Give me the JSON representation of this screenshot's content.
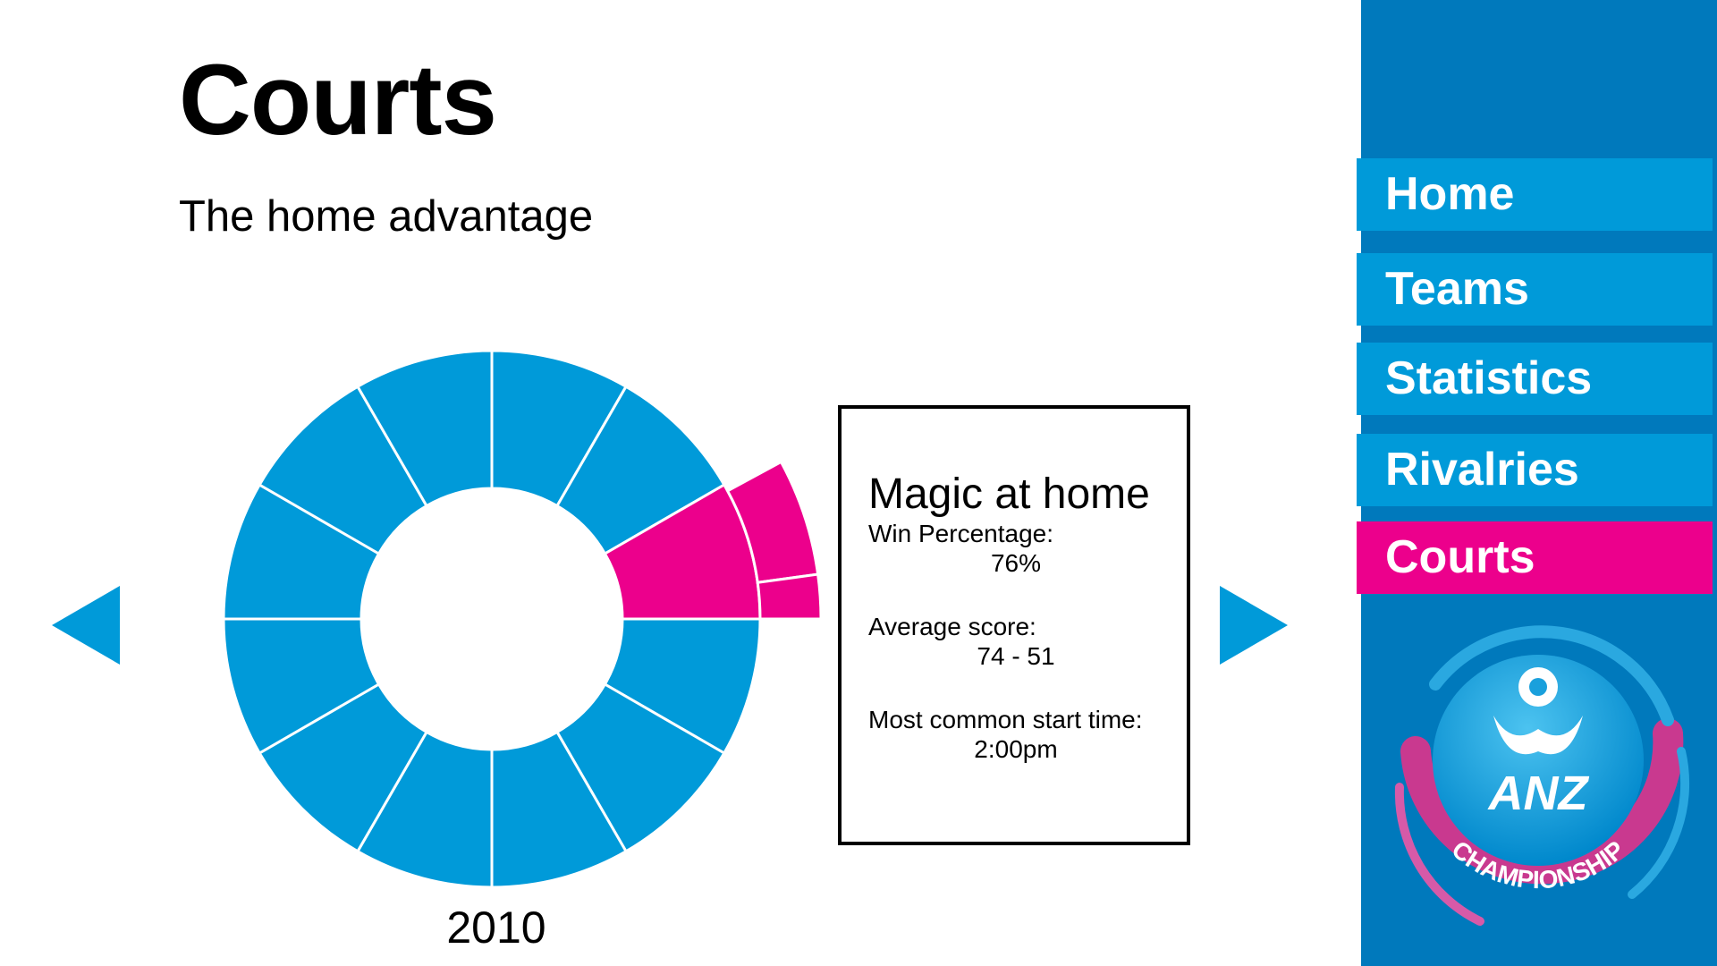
{
  "page": {
    "title": "Courts",
    "subtitle": "The home advantage"
  },
  "carousel": {
    "year": "2010",
    "prev_icon": "triangle-left-icon",
    "next_icon": "triangle-right-icon"
  },
  "wheel": {
    "segment_count": 12,
    "highlighted_index": 2,
    "base_color": "#009ad9",
    "highlight_color": "#ec008c"
  },
  "info": {
    "heading": "Magic at home",
    "stats": [
      {
        "label": "Win Percentage:",
        "value": "76%"
      },
      {
        "label": "Average score:",
        "value": "74 - 51"
      },
      {
        "label": "Most common start time:",
        "value": "2:00pm"
      }
    ]
  },
  "sidebar": {
    "background": "#0079bc",
    "items": [
      {
        "label": "Home",
        "active": false
      },
      {
        "label": "Teams",
        "active": false
      },
      {
        "label": "Statistics",
        "active": false
      },
      {
        "label": "Rivalries",
        "active": false
      },
      {
        "label": "Courts",
        "active": true
      }
    ],
    "logo": {
      "icon": "anz-championship-logo",
      "brand": "ANZ",
      "tagline": "CHAMPIONSHIP"
    }
  }
}
